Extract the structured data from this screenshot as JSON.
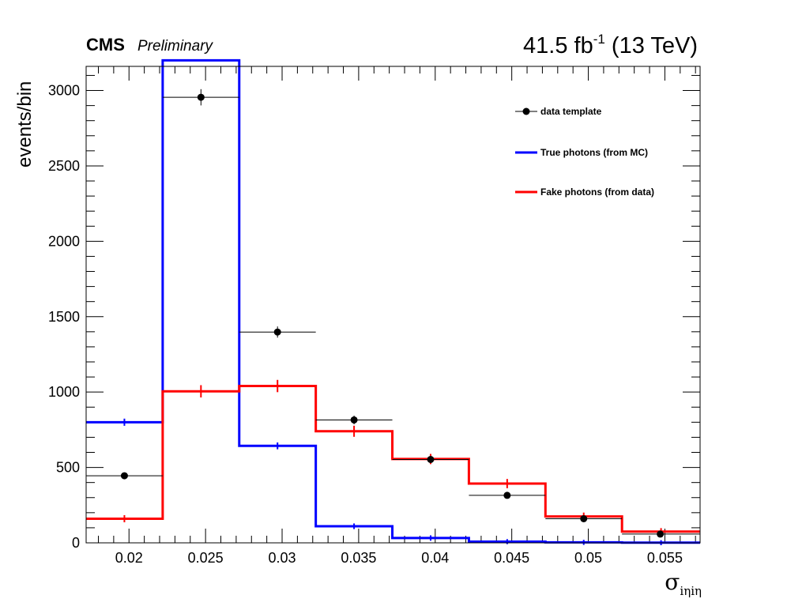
{
  "header": {
    "cms": "CMS",
    "preliminary": "Preliminary",
    "lumi_value": "41.5 fb",
    "lumi_exp": "-1",
    "energy": " (13 TeV)"
  },
  "colors": {
    "data": "#000000",
    "true": "#0000ff",
    "fake": "#ff0000"
  },
  "chart_data": {
    "type": "line",
    "ylabel": "events/bin",
    "xlabel_symbol": "σ",
    "xlabel_sub": "iηiη",
    "xlim": [
      0.0172,
      0.0573
    ],
    "ylim": [
      0,
      3160
    ],
    "x_ticks": [
      0.02,
      0.025,
      0.03,
      0.035,
      0.04,
      0.045,
      0.05,
      0.055
    ],
    "x_tick_labels": [
      "0.02",
      "0.025",
      "0.03",
      "0.035",
      "0.04",
      "0.045",
      "0.05",
      "0.055"
    ],
    "y_ticks": [
      0,
      500,
      1000,
      1500,
      2000,
      2500,
      3000
    ],
    "y_tick_labels": [
      "0",
      "500",
      "1000",
      "1500",
      "2000",
      "2500",
      "3000"
    ],
    "bin_edges": [
      0.0172,
      0.0222,
      0.0272,
      0.0322,
      0.0372,
      0.0422,
      0.0472,
      0.0522,
      0.0573
    ],
    "legend_placement": "top-right",
    "series": [
      {
        "name": "data template",
        "style": "points",
        "x": [
          0.0197,
          0.0247,
          0.0297,
          0.0347,
          0.0397,
          0.0447,
          0.0497,
          0.0547
        ],
        "values": [
          445,
          2955,
          1398,
          815,
          553,
          315,
          160,
          58
        ],
        "errors": [
          21,
          54,
          37,
          29,
          24,
          18,
          13,
          8
        ]
      },
      {
        "name": "True photons (from MC)",
        "style": "step",
        "values": [
          800,
          3200,
          643,
          110,
          32,
          8,
          3,
          1
        ],
        "errors": [
          8,
          15,
          7,
          3,
          2,
          1,
          1,
          1
        ]
      },
      {
        "name": "Fake photons (from data)",
        "style": "step",
        "values": [
          160,
          1005,
          1040,
          740,
          556,
          393,
          175,
          75
        ],
        "errors": [
          8,
          25,
          25,
          21,
          18,
          15,
          10,
          7
        ]
      }
    ]
  }
}
